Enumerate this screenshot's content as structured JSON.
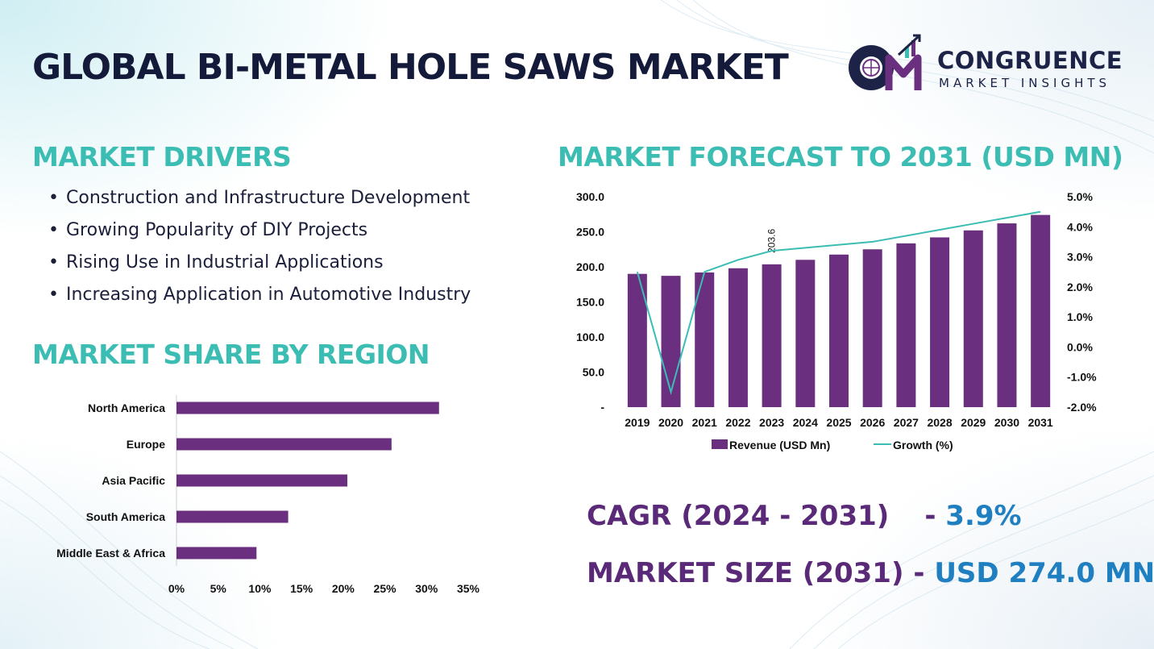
{
  "header": {
    "title": "GLOBAL BI-METAL HOLE SAWS MARKET",
    "logo_name": "CONGRUENCE",
    "logo_tagline": "MARKET INSIGHTS"
  },
  "colors": {
    "title": "#131a3a",
    "section": "#3cbdb3",
    "bar": "#6b2f7f",
    "line": "#3cbdb3",
    "cagr_label": "#5a2a79",
    "cagr_value": "#1f7fc0"
  },
  "drivers": {
    "title": "MARKET DRIVERS",
    "items": [
      "Construction and Infrastructure Development",
      "Growing Popularity of DIY Projects",
      "Rising Use in Industrial Applications",
      "Increasing Application in Automotive Industry"
    ]
  },
  "region": {
    "title": "MARKET SHARE BY REGION"
  },
  "forecast": {
    "title": "MARKET FORECAST TO 2031 (USD MN)"
  },
  "stats": {
    "cagr_label": "CAGR (2024 - 2031)",
    "cagr_sep": "-",
    "cagr_value": "3.9%",
    "size_label": "MARKET SIZE (2031)",
    "size_sep": "-",
    "size_value": "USD 274.0 MN"
  },
  "chart_data": [
    {
      "type": "bar",
      "orientation": "horizontal",
      "title": "",
      "categories": [
        "North America",
        "Europe",
        "Asia Pacific",
        "South America",
        "Middle East & Africa"
      ],
      "values": [
        31.5,
        25.8,
        20.5,
        13.4,
        9.6
      ],
      "xlim": [
        0,
        35
      ],
      "xticks": [
        "0%",
        "5%",
        "10%",
        "15%",
        "20%",
        "25%",
        "30%",
        "35%"
      ],
      "grid": false
    },
    {
      "type": "bar",
      "title": "",
      "categories": [
        "2019",
        "2020",
        "2021",
        "2022",
        "2023",
        "2024",
        "2025",
        "2026",
        "2027",
        "2028",
        "2029",
        "2030",
        "2031"
      ],
      "series": [
        {
          "name": "Revenue (USD Mn)",
          "type": "bar",
          "axis": "left",
          "values": [
            190.0,
            187.2,
            192.0,
            198.0,
            203.6,
            210.0,
            217.5,
            225.0,
            233.5,
            242.0,
            252.0,
            262.0,
            274.0
          ]
        },
        {
          "name": "Growth (%)",
          "type": "line",
          "axis": "right",
          "values": [
            2.5,
            -1.5,
            2.5,
            2.9,
            3.2,
            3.3,
            3.4,
            3.5,
            3.7,
            3.9,
            4.1,
            4.3,
            4.5
          ]
        }
      ],
      "data_labels": [
        {
          "category": "2023",
          "text": "203.6"
        }
      ],
      "ylim_left": [
        0,
        300
      ],
      "yticks_left": [
        "-",
        "50.0",
        "100.0",
        "150.0",
        "200.0",
        "250.0",
        "300.0"
      ],
      "ylim_right": [
        -2,
        5
      ],
      "yticks_right": [
        "-2.0%",
        "-1.0%",
        "0.0%",
        "1.0%",
        "2.0%",
        "3.0%",
        "4.0%",
        "5.0%"
      ],
      "legend_position": "bottom",
      "grid": false
    }
  ]
}
